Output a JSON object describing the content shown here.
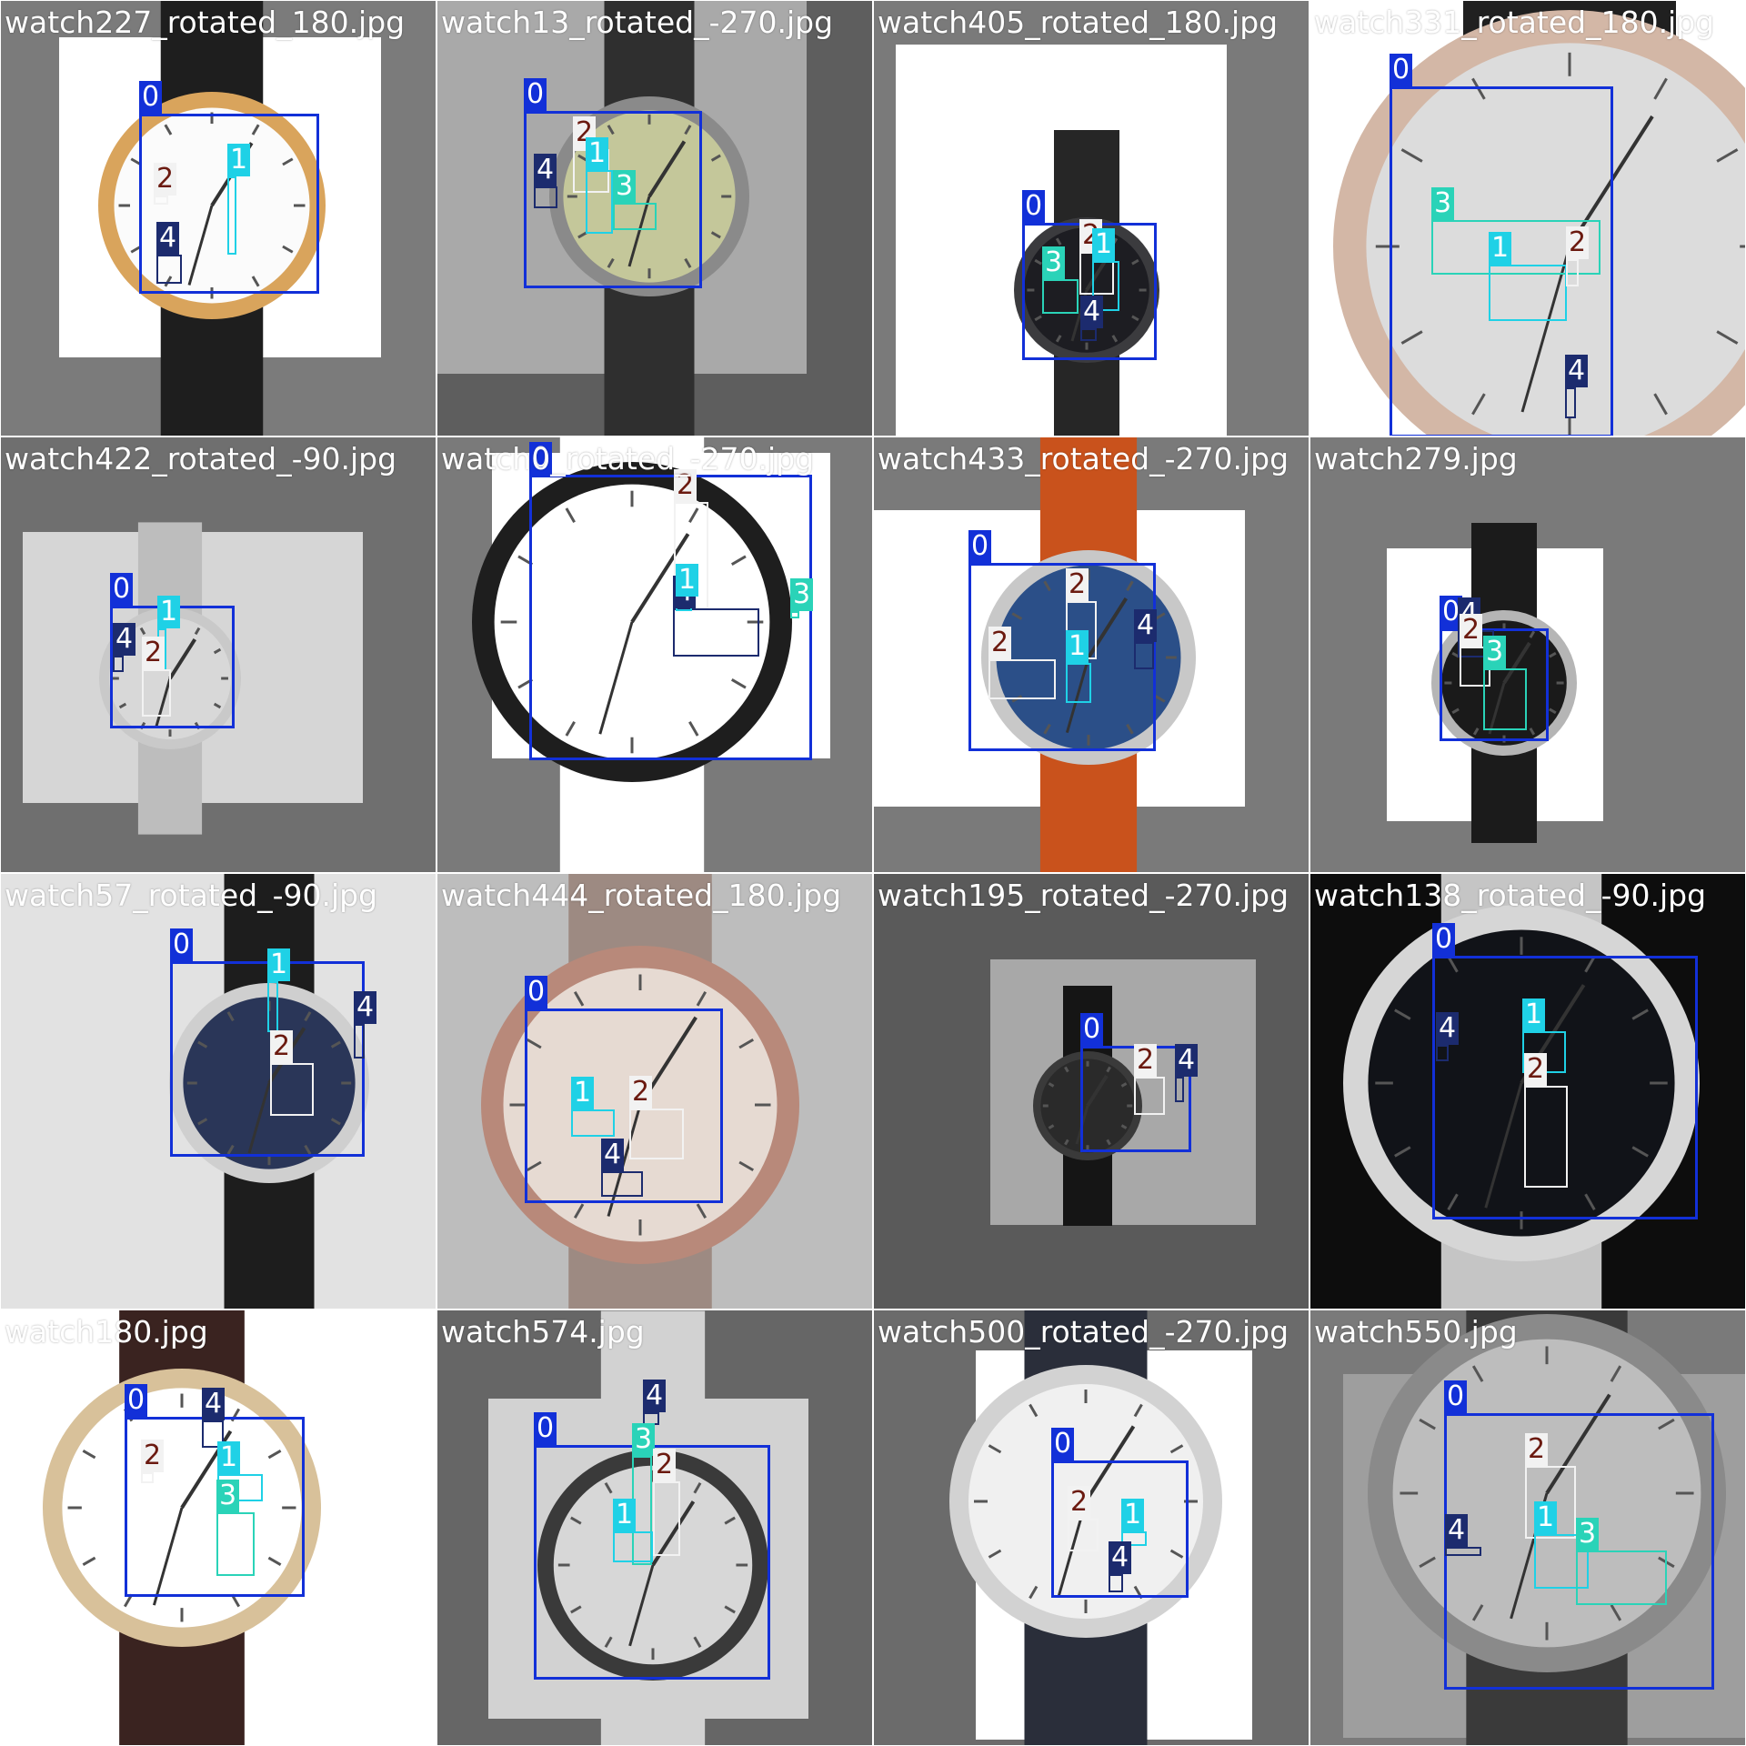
{
  "classes": {
    "0": {
      "border": "#1230d8",
      "tag_bg": "#1230d8",
      "tag_fg": "#ffffff"
    },
    "1": {
      "border": "#1fd1e6",
      "tag_bg": "#1fd1e6",
      "tag_fg": "#ffffff"
    },
    "2": {
      "border": "#f2f2f2",
      "tag_bg": "#f2f2f2",
      "tag_fg": "#6b1a10"
    },
    "3": {
      "border": "#2ad3b8",
      "tag_bg": "#2ad3b8",
      "tag_fg": "#ffffff"
    },
    "4": {
      "border": "#1c2b6e",
      "tag_bg": "#1c2b6e",
      "tag_fg": "#ffffff"
    }
  },
  "tiles": [
    {
      "filename": "watch227_rotated_180.jpg",
      "bg": "#7b7b7b",
      "photo_bg": "#ffffff",
      "dial": "#fbfbfb",
      "case": "#d9a45c",
      "strap": "#1e1e1e",
      "labels": [
        "0",
        "2",
        "1",
        "4"
      ]
    },
    {
      "filename": "watch13_rotated_-270.jpg",
      "bg": "#5e5e5e",
      "photo_bg": "#a9a9a9",
      "dial": "#c4c79a",
      "case": "#8a8a8a",
      "strap": "#2f2f2f",
      "labels": [
        "0",
        "2",
        "4",
        "1",
        "3"
      ]
    },
    {
      "filename": "watch405_rotated_180.jpg",
      "bg": "#7a7a7a",
      "photo_bg": "#ffffff",
      "dial": "#1d1d22",
      "case": "#3b3b3e",
      "strap": "#262626",
      "labels": [
        "0",
        "3",
        "2",
        "1",
        "4"
      ]
    },
    {
      "filename": "watch331_rotated_180.jpg",
      "bg": "#7a7a7a",
      "photo_bg": "#ffffff",
      "dial": "#dcdcdc",
      "case": "#d3b7a6",
      "strap": "#202020",
      "labels": [
        "0",
        "3",
        "1",
        "2",
        "4"
      ]
    },
    {
      "filename": "watch422_rotated_-90.jpg",
      "bg": "#6f6f6f",
      "photo_bg": "#d6d6d6",
      "dial": "#d8d8d8",
      "case": "#c9c9c9",
      "strap": "#bdbdbd",
      "labels": [
        "0",
        "1",
        "4",
        "2"
      ]
    },
    {
      "filename": "watch0_rotated_-270.jpg",
      "bg": "#7a7a7a",
      "photo_bg": "#ffffff",
      "dial": "#ffffff",
      "case": "#1e1e1e",
      "strap": "#ffffff",
      "labels": [
        "0",
        "2",
        "3",
        "4",
        "1"
      ]
    },
    {
      "filename": "watch433_rotated_-270.jpg",
      "bg": "#7a7a7a",
      "photo_bg": "#ffffff",
      "dial": "#2b4f88",
      "case": "#c8c8c8",
      "strap": "#c9521c",
      "labels": [
        "0",
        "2",
        "4",
        "2",
        "1"
      ]
    },
    {
      "filename": "watch279.jpg",
      "bg": "#7a7a7a",
      "photo_bg": "#ffffff",
      "dial": "#1a1a1a",
      "case": "#b5b5b5",
      "strap": "#1b1b1b",
      "labels": [
        "0",
        "4",
        "2",
        "3"
      ]
    },
    {
      "filename": "watch57_rotated_-90.jpg",
      "bg": "#9a9a9a",
      "photo_bg": "#e2e2e2",
      "dial": "#2a3658",
      "case": "#cfcfcf",
      "strap": "#1d1d1d",
      "labels": [
        "0",
        "1",
        "4",
        "2"
      ]
    },
    {
      "filename": "watch444_rotated_180.jpg",
      "bg": "#a3a3a3",
      "photo_bg": "#bdbdbd",
      "dial": "#e6dad2",
      "case": "#b8897a",
      "strap": "#9d8a82",
      "labels": [
        "0",
        "1",
        "2",
        "4"
      ]
    },
    {
      "filename": "watch195_rotated_-270.jpg",
      "bg": "#5a5a5a",
      "photo_bg": "#a8a8a8",
      "dial": "#2a2a2a",
      "case": "#3a3a3a",
      "strap": "#151515",
      "labels": [
        "0",
        "2",
        "4"
      ]
    },
    {
      "filename": "watch138_rotated_-90.jpg",
      "bg": "#0d0d0d",
      "photo_bg": "#0d0d0d",
      "dial": "#111318",
      "case": "#d6d6d6",
      "strap": "#c5c5c5",
      "labels": [
        "0",
        "1",
        "4",
        "2"
      ]
    },
    {
      "filename": "watch180.jpg",
      "bg": "#ffffff",
      "photo_bg": "#ffffff",
      "dial": "#ffffff",
      "case": "#d8c19a",
      "strap": "#3a2320",
      "labels": [
        "0",
        "4",
        "2",
        "1",
        "3"
      ]
    },
    {
      "filename": "watch574.jpg",
      "bg": "#666666",
      "photo_bg": "#d2d2d2",
      "dial": "#d7d7d7",
      "case": "#3a3a3a",
      "strap": "#d2d2d2",
      "labels": [
        "4",
        "0",
        "3",
        "2",
        "1"
      ]
    },
    {
      "filename": "watch500_rotated_-270.jpg",
      "bg": "#6b6b6b",
      "photo_bg": "#ffffff",
      "dial": "#f0f0f0",
      "case": "#d2d2d2",
      "strap": "#2a2e3a",
      "labels": [
        "0",
        "2",
        "1",
        "4"
      ]
    },
    {
      "filename": "watch550.jpg",
      "bg": "#7a7a7a",
      "photo_bg": "#9e9e9e",
      "dial": "#bdbdbd",
      "case": "#8a8a8a",
      "strap": "#3a3a3a",
      "labels": [
        "0",
        "2",
        "1",
        "3",
        "4"
      ]
    }
  ]
}
